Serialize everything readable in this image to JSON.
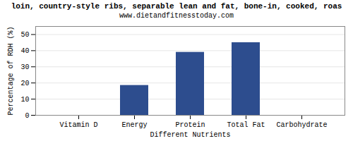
{
  "chart_data": {
    "type": "bar",
    "title": "loin, country-style ribs, separable lean and fat, bone-in, cooked, roas",
    "subtitle": "www.dietandfitnesstoday.com",
    "xlabel": "Different Nutrients",
    "ylabel": "Percentage of RDH (%)",
    "categories": [
      "Vitamin D",
      "Energy",
      "Protein",
      "Total Fat",
      "Carbohydrate"
    ],
    "values": [
      0,
      18.5,
      39,
      45,
      0
    ],
    "color": "#2d4d8e",
    "ylim": [
      0,
      55
    ],
    "yticks": [
      0,
      10,
      20,
      30,
      40,
      50
    ],
    "grid": true
  }
}
